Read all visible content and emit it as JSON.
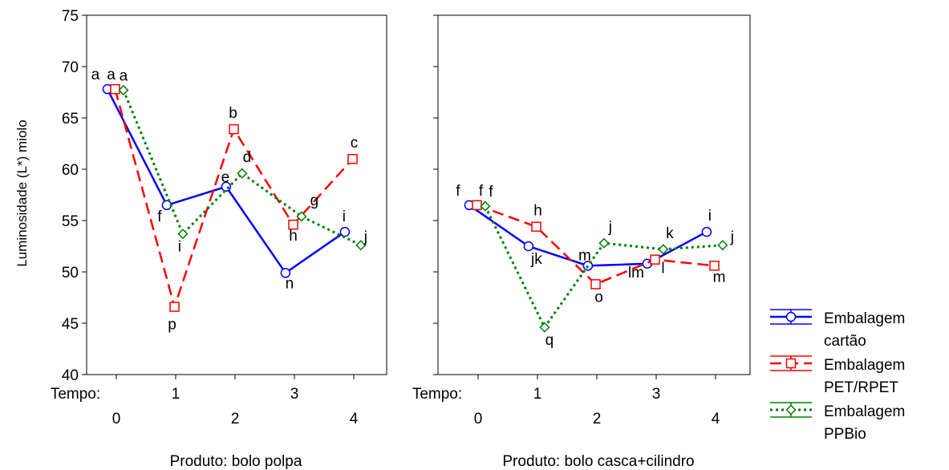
{
  "chart_data": {
    "type": "line",
    "ylabel": "Luminosidade (L*) miolo",
    "xlabel": "Tempo:",
    "ylim": [
      40,
      75
    ],
    "yticks": [
      40,
      45,
      50,
      55,
      60,
      65,
      70,
      75
    ],
    "x": [
      0,
      1,
      2,
      3,
      4
    ],
    "xtick_labels_row1": [
      "1",
      "3"
    ],
    "xtick_labels_row2": [
      "0",
      "2",
      "4"
    ],
    "legend_position": "right",
    "series_colors": [
      "#0000ff",
      "#ff0000",
      "#008000"
    ],
    "legend": [
      {
        "line1": "Embalagem",
        "line2": "cartão"
      },
      {
        "line1": "Embalagem",
        "line2": "PET/RPET"
      },
      {
        "line1": "Embalagem",
        "line2": "PPBio"
      }
    ],
    "panels": [
      {
        "caption": "Produto: bolo polpa",
        "series": [
          {
            "values": [
              67.8,
              56.5,
              58.3,
              49.9,
              53.9
            ],
            "labels": [
              "a",
              "f",
              "e",
              "n",
              "i"
            ]
          },
          {
            "values": [
              67.8,
              46.6,
              63.9,
              54.6,
              61.0
            ],
            "labels": [
              "a",
              "p",
              "b",
              "h",
              "c"
            ]
          },
          {
            "values": [
              67.7,
              53.7,
              59.6,
              55.4,
              52.6
            ],
            "labels": [
              "a",
              "i",
              "d",
              "g",
              "j"
            ]
          }
        ]
      },
      {
        "caption": "Produto: bolo casca+cilindro",
        "series": [
          {
            "values": [
              56.5,
              52.5,
              50.6,
              50.8,
              53.9
            ],
            "labels": [
              "f",
              "jk",
              "m",
              "lm",
              "i"
            ]
          },
          {
            "values": [
              56.5,
              54.4,
              48.8,
              51.2,
              50.6
            ],
            "labels": [
              "f",
              "h",
              "o",
              "l",
              "m"
            ]
          },
          {
            "values": [
              56.4,
              44.6,
              52.8,
              52.2,
              52.6
            ],
            "labels": [
              "f",
              "q",
              "j",
              "k",
              "j"
            ]
          }
        ]
      }
    ]
  }
}
